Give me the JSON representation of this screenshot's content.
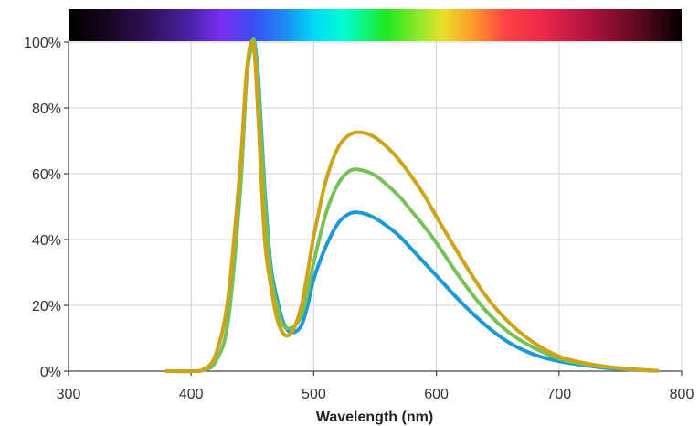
{
  "chart_data": {
    "type": "line",
    "title": "",
    "xlabel": "Wavelength (nm)",
    "ylabel": "",
    "xlim": [
      300,
      800
    ],
    "ylim": [
      0,
      100
    ],
    "x_ticks": [
      300,
      400,
      500,
      600,
      700,
      800
    ],
    "x_tick_labels": [
      "300",
      "400",
      "500",
      "600",
      "700",
      "800"
    ],
    "y_ticks": [
      0,
      20,
      40,
      60,
      80,
      100
    ],
    "y_tick_labels": [
      "0%",
      "20%",
      "40%",
      "60%",
      "80%",
      "100%"
    ],
    "grid": true,
    "legend": "none",
    "spectrum_bar": true,
    "series": [
      {
        "color": "#1b9ad6",
        "x": [
          380,
          400,
          410,
          420,
          430,
          440,
          445,
          450,
          452,
          455,
          460,
          465,
          470,
          475,
          480,
          485,
          490,
          495,
          500,
          510,
          520,
          530,
          540,
          550,
          560,
          570,
          580,
          590,
          600,
          620,
          640,
          660,
          680,
          700,
          720,
          740,
          760,
          780
        ],
        "y": [
          0,
          0,
          0.3,
          3,
          15,
          55,
          88,
          100,
          99,
          88,
          55,
          32,
          22,
          15,
          12,
          12,
          14,
          20,
          28,
          38,
          45,
          48,
          48,
          46.5,
          44,
          41,
          37,
          33,
          29,
          21,
          14,
          8.5,
          5,
          3,
          1.8,
          0.9,
          0.4,
          0.1
        ]
      },
      {
        "color": "#77c159",
        "x": [
          380,
          400,
          410,
          420,
          430,
          440,
          445,
          450,
          452,
          455,
          460,
          465,
          470,
          475,
          480,
          485,
          490,
          495,
          500,
          510,
          520,
          530,
          540,
          550,
          560,
          570,
          580,
          590,
          600,
          620,
          640,
          660,
          680,
          700,
          720,
          740,
          760,
          780
        ],
        "y": [
          0,
          0,
          0.3,
          3,
          15,
          55,
          88,
          100,
          98,
          85,
          52,
          30,
          20,
          14,
          13,
          14,
          17,
          24,
          33,
          48,
          57,
          61,
          61,
          59.5,
          56.5,
          53,
          48.5,
          44,
          39,
          28,
          18.5,
          11.5,
          7,
          3.8,
          2.2,
          1.2,
          0.5,
          0.1
        ]
      },
      {
        "color": "#cfa318",
        "x": [
          380,
          400,
          410,
          420,
          430,
          440,
          445,
          449,
          452,
          455,
          460,
          465,
          470,
          475,
          480,
          485,
          490,
          495,
          500,
          510,
          520,
          530,
          540,
          550,
          560,
          570,
          580,
          590,
          600,
          620,
          640,
          660,
          680,
          700,
          720,
          740,
          760,
          780
        ],
        "y": [
          0,
          0,
          0.5,
          5,
          22,
          62,
          90,
          100,
          95,
          75,
          40,
          26,
          16,
          11.5,
          11,
          14,
          20,
          30,
          41,
          58,
          68,
          72,
          72.5,
          71,
          68,
          64,
          59,
          53.5,
          47,
          34.5,
          23,
          14.5,
          8.5,
          4.5,
          2.5,
          1.3,
          0.6,
          0.1
        ]
      }
    ]
  }
}
